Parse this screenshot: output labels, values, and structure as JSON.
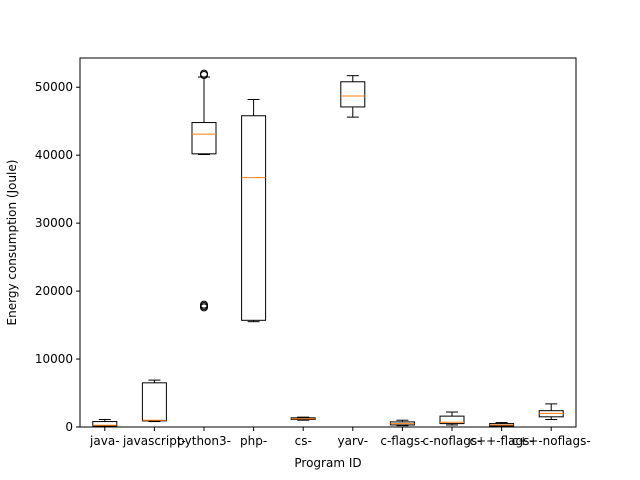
{
  "chart_data": {
    "type": "box",
    "title": "",
    "xlabel": "Program ID",
    "ylabel": "Energy consumption (Joule)",
    "ylim": [
      0,
      54300
    ],
    "yticks": [
      0,
      10000,
      20000,
      30000,
      40000,
      50000
    ],
    "grid": false,
    "categories": [
      "java-",
      "javascript-",
      "python3-",
      "php-",
      "cs-",
      "yarv-",
      "c-flags-",
      "c-noflags-",
      "c++-flags-",
      "c++-noflags-"
    ],
    "boxes": [
      {
        "whislo": 100,
        "q1": 150,
        "med": 250,
        "q3": 800,
        "whishi": 1100,
        "fliers": []
      },
      {
        "whislo": 800,
        "q1": 900,
        "med": 1000,
        "q3": 6500,
        "whishi": 6900,
        "fliers": []
      },
      {
        "whislo": 40100,
        "q1": 40200,
        "med": 43100,
        "q3": 44800,
        "whishi": 51500,
        "fliers": [
          17600,
          17800,
          18000,
          51800,
          52000
        ]
      },
      {
        "whislo": 15500,
        "q1": 15700,
        "med": 36700,
        "q3": 45800,
        "whishi": 48200,
        "fliers": []
      },
      {
        "whislo": 1000,
        "q1": 1100,
        "med": 1200,
        "q3": 1350,
        "whishi": 1450,
        "fliers": []
      },
      {
        "whislo": 45600,
        "q1": 47100,
        "med": 48700,
        "q3": 50800,
        "whishi": 51700,
        "fliers": []
      },
      {
        "whislo": 200,
        "q1": 300,
        "med": 500,
        "q3": 750,
        "whishi": 1000,
        "fliers": []
      },
      {
        "whislo": 300,
        "q1": 500,
        "med": 700,
        "q3": 1600,
        "whishi": 2200,
        "fliers": []
      },
      {
        "whislo": 100,
        "q1": 150,
        "med": 300,
        "q3": 500,
        "whishi": 650,
        "fliers": []
      },
      {
        "whislo": 1100,
        "q1": 1500,
        "med": 2000,
        "q3": 2400,
        "whishi": 3400,
        "fliers": []
      }
    ],
    "colors": {
      "box": "#000000",
      "median": "#ff7f0e",
      "flier": "#000000",
      "axis": "#000000"
    }
  }
}
